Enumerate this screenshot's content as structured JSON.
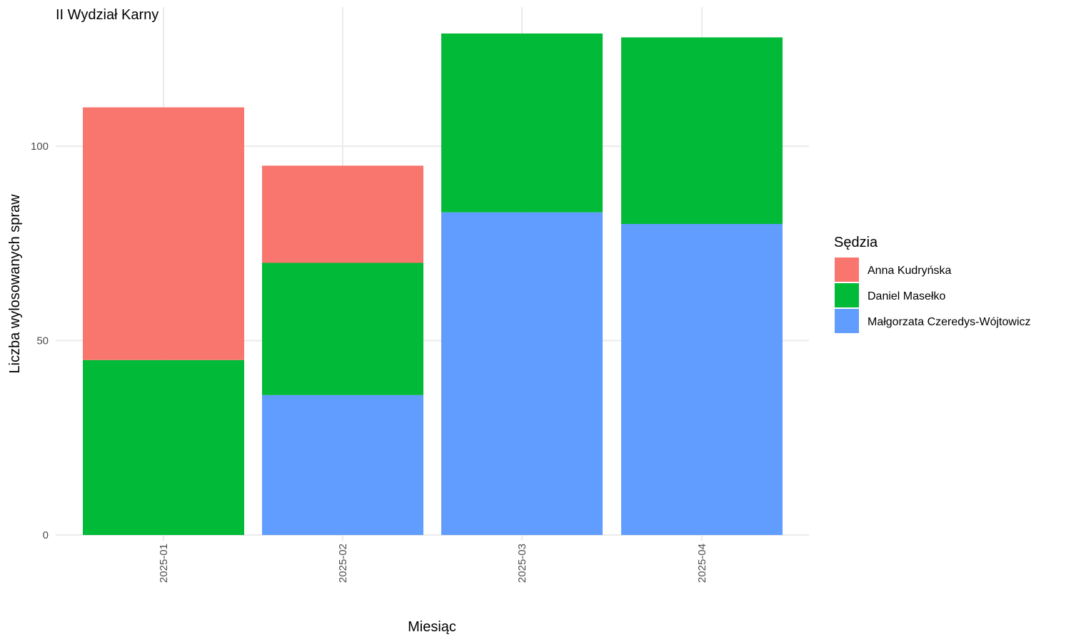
{
  "chart_data": {
    "type": "bar",
    "stacked": true,
    "title": "II Wydział Karny",
    "xlabel": "Miesiąc",
    "ylabel": "Liczba wylosowanych spraw",
    "categories": [
      "2025-01",
      "2025-02",
      "2025-03",
      "2025-04"
    ],
    "ylim": [
      0,
      129
    ],
    "yticks": [
      0,
      50,
      100
    ],
    "grid": true,
    "legend": {
      "title": "Sędzia",
      "position": "right"
    },
    "series": [
      {
        "name": "Anna Kudryńska",
        "color": "#F8766D",
        "values": [
          65,
          25,
          0,
          0
        ]
      },
      {
        "name": "Daniel Masełko",
        "color": "#00BA38",
        "values": [
          45,
          34,
          46,
          48
        ]
      },
      {
        "name": "Małgorzata Czeredys-Wójtowicz",
        "color": "#619CFF",
        "values": [
          0,
          36,
          83,
          80
        ]
      }
    ],
    "stack_order_bottom_to_top": [
      "Małgorzata Czeredys-Wójtowicz",
      "Daniel Masełko",
      "Anna Kudryńska"
    ]
  }
}
